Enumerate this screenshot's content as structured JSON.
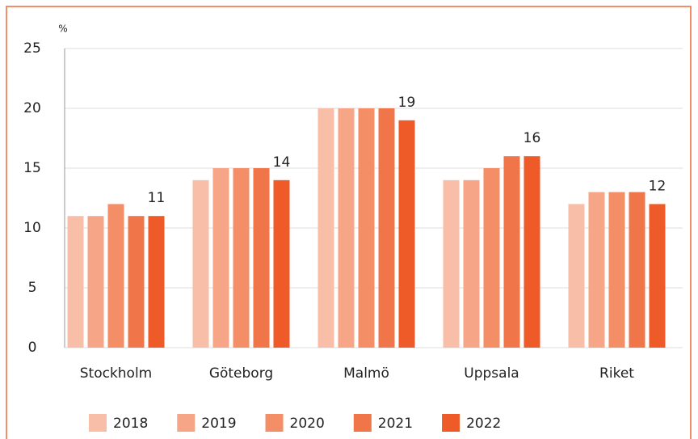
{
  "chart_data": {
    "type": "bar",
    "ylabel": "%",
    "categories": [
      "Stockholm",
      "Göteborg",
      "Malmö",
      "Uppsala",
      "Riket"
    ],
    "series": [
      {
        "name": "2018",
        "color": "#f9bea7",
        "values": [
          11,
          14,
          20,
          14,
          12
        ]
      },
      {
        "name": "2019",
        "color": "#f6a686",
        "values": [
          11,
          15,
          20,
          14,
          13
        ]
      },
      {
        "name": "2020",
        "color": "#f38e66",
        "values": [
          12,
          15,
          20,
          15,
          13
        ]
      },
      {
        "name": "2021",
        "color": "#f07548",
        "values": [
          11,
          15,
          20,
          16,
          13
        ]
      },
      {
        "name": "2022",
        "color": "#ee5a28",
        "values": [
          11,
          14,
          19,
          16,
          12
        ],
        "labels": true
      }
    ],
    "ylim": [
      0,
      25
    ],
    "yticks": [
      0,
      5,
      10,
      15,
      20,
      25
    ],
    "grid": true,
    "legend": "bottom"
  }
}
